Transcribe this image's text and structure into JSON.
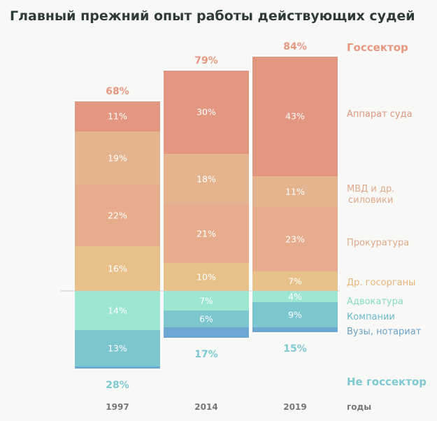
{
  "chart_data": {
    "type": "bar",
    "title": "Главный прежний опыт работы действующих судей",
    "categories": [
      "1997",
      "2014",
      "2019"
    ],
    "x_axis_label": "годы",
    "group_labels": {
      "state": "Госсектор",
      "nonstate": "Не госсектор"
    },
    "state_series": [
      {
        "name": "Др. госорганы",
        "values": [
          16,
          10,
          7
        ],
        "color": "#e8c08a"
      },
      {
        "name": "Прокуратура",
        "values": [
          22,
          21,
          23
        ],
        "color": "#e6ac8c"
      },
      {
        "name": "МВД и др. силовики",
        "values": [
          19,
          18,
          11
        ],
        "color": "#e4b48e"
      },
      {
        "name": "Аппарат суда",
        "values": [
          11,
          30,
          43
        ],
        "color": "#e39680"
      }
    ],
    "nonstate_series": [
      {
        "name": "Адвокатура",
        "values": [
          14,
          7,
          4
        ],
        "color": "#9ce6d2"
      },
      {
        "name": "Компании",
        "values": [
          13,
          6,
          9
        ],
        "color": "#7cc6cf"
      },
      {
        "name": "Вузы, нотариат",
        "values": [
          1,
          4,
          2
        ],
        "color": "#6fa7d3"
      }
    ],
    "state_totals": [
      "68%",
      "79%",
      "84%"
    ],
    "nonstate_totals": [
      "28%",
      "17%",
      "15%"
    ],
    "value_labels": {
      "Аппарат суда": [
        "11%",
        "30%",
        "43%"
      ],
      "МВД и др. силовики": [
        "19%",
        "18%",
        "11%"
      ],
      "Прокуратура": [
        "22%",
        "21%",
        "23%"
      ],
      "Др. госорганы": [
        "16%",
        "10%",
        "7%"
      ],
      "Адвокатура": [
        "14%",
        "7%",
        "4%"
      ],
      "Компании": [
        "13%",
        "6%",
        "9%"
      ]
    },
    "colors": {
      "state_text": "#e89880",
      "nonstate_text": "#7ec9d2",
      "title_text": "#2f3b38",
      "baseline": "#cccccc"
    }
  }
}
